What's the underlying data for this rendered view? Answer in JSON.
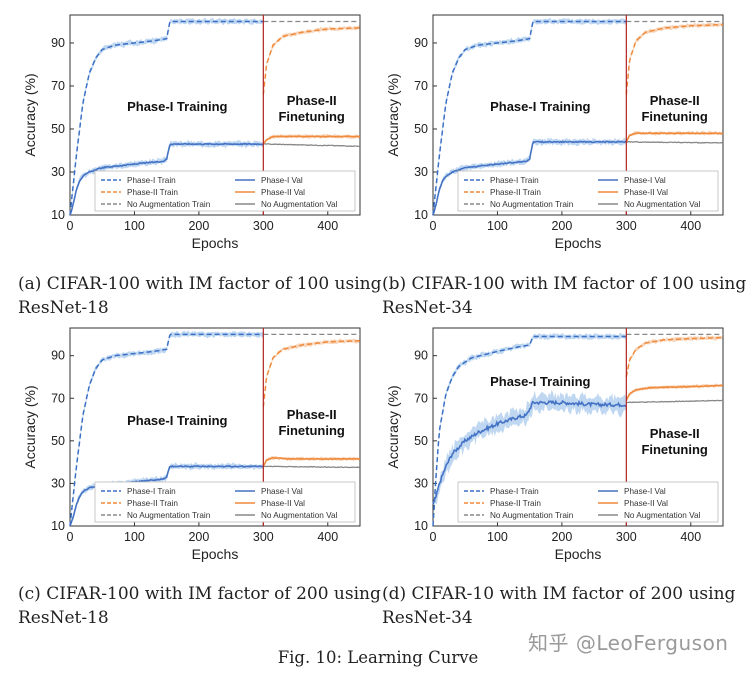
{
  "figure_caption": "Fig. 10: Learning Curve",
  "watermark": "知乎 @LeoFerguson",
  "colors": {
    "train_blue": "#3a6fc4",
    "val_blue": "#4472c4",
    "band_blue": "#a9c9ec",
    "phase2": "#ef8a3c",
    "band_orange": "#f6c6a0",
    "noaug": "#888888",
    "divider": "#b22222"
  },
  "chart_data": [
    {
      "type": "line",
      "caption": "(a) CIFAR-100 with IM factor of 100 using ResNet-18",
      "xlabel": "Epochs",
      "ylabel": "Accuracy (%)",
      "xlim": [
        0,
        450
      ],
      "ylim": [
        10,
        103
      ],
      "xticks": [
        "0",
        "100",
        "200",
        "300",
        "400"
      ],
      "yticks": [
        "10",
        "30",
        "50",
        "70",
        "90"
      ],
      "divider_x": 300,
      "phase1_label": "Phase-I Training",
      "phase2_label": [
        "Phase-II",
        "Finetuning"
      ],
      "label_pos": "high",
      "legend": [
        "Phase-I Train",
        "Phase-I Val",
        "Phase-II Train",
        "Phase-II Val",
        "No Augmentation Train",
        "No Augmentation Val"
      ],
      "series": {
        "phase1_train": [
          [
            0,
            10
          ],
          [
            10,
            38
          ],
          [
            20,
            62
          ],
          [
            30,
            76
          ],
          [
            40,
            83
          ],
          [
            50,
            87
          ],
          [
            70,
            89
          ],
          [
            100,
            90
          ],
          [
            130,
            91
          ],
          [
            150,
            92
          ],
          [
            155,
            100
          ],
          [
            300,
            100
          ]
        ],
        "phase1_val": [
          [
            0,
            10
          ],
          [
            5,
            15
          ],
          [
            10,
            22
          ],
          [
            15,
            26
          ],
          [
            20,
            28
          ],
          [
            30,
            30
          ],
          [
            50,
            32
          ],
          [
            80,
            33
          ],
          [
            110,
            34
          ],
          [
            145,
            35
          ],
          [
            150,
            36
          ],
          [
            155,
            43
          ],
          [
            300,
            43
          ]
        ],
        "phase2_train": [
          [
            300,
            66
          ],
          [
            305,
            80
          ],
          [
            315,
            89
          ],
          [
            330,
            93
          ],
          [
            360,
            95
          ],
          [
            400,
            96.5
          ],
          [
            450,
            97
          ]
        ],
        "phase2_val": [
          [
            300,
            43
          ],
          [
            305,
            45
          ],
          [
            315,
            46.5
          ],
          [
            340,
            46.5
          ],
          [
            450,
            46.5
          ]
        ],
        "noaug_train": [
          [
            300,
            100
          ],
          [
            450,
            100
          ]
        ],
        "noaug_val": [
          [
            300,
            43
          ],
          [
            450,
            42
          ]
        ]
      }
    },
    {
      "type": "line",
      "caption": "(b) CIFAR-100 with IM factor of 100 using ResNet-34",
      "xlabel": "Epochs",
      "ylabel": "Accuracy (%)",
      "xlim": [
        0,
        450
      ],
      "ylim": [
        10,
        103
      ],
      "xticks": [
        "0",
        "100",
        "200",
        "300",
        "400"
      ],
      "yticks": [
        "10",
        "30",
        "50",
        "70",
        "90"
      ],
      "divider_x": 300,
      "phase1_label": "Phase-I Training",
      "phase2_label": [
        "Phase-II",
        "Finetuning"
      ],
      "label_pos": "high",
      "legend": [
        "Phase-I Train",
        "Phase-I Val",
        "Phase-II Train",
        "Phase-II Val",
        "No Augmentation Train",
        "No Augmentation Val"
      ],
      "series": {
        "phase1_train": [
          [
            0,
            10
          ],
          [
            10,
            38
          ],
          [
            20,
            62
          ],
          [
            30,
            76
          ],
          [
            40,
            83
          ],
          [
            50,
            87
          ],
          [
            70,
            89
          ],
          [
            100,
            90
          ],
          [
            130,
            91
          ],
          [
            150,
            92
          ],
          [
            155,
            100
          ],
          [
            300,
            100
          ]
        ],
        "phase1_val": [
          [
            0,
            10
          ],
          [
            5,
            15
          ],
          [
            10,
            22
          ],
          [
            15,
            26
          ],
          [
            20,
            28
          ],
          [
            30,
            30
          ],
          [
            50,
            32
          ],
          [
            80,
            33
          ],
          [
            110,
            34
          ],
          [
            145,
            35
          ],
          [
            150,
            36
          ],
          [
            155,
            44
          ],
          [
            300,
            44
          ]
        ],
        "phase2_train": [
          [
            300,
            66
          ],
          [
            305,
            82
          ],
          [
            315,
            91
          ],
          [
            330,
            95
          ],
          [
            360,
            97
          ],
          [
            400,
            98
          ],
          [
            450,
            98.5
          ]
        ],
        "phase2_val": [
          [
            300,
            44
          ],
          [
            305,
            47
          ],
          [
            315,
            48
          ],
          [
            340,
            48
          ],
          [
            450,
            48
          ]
        ],
        "noaug_train": [
          [
            300,
            100
          ],
          [
            450,
            100
          ]
        ],
        "noaug_val": [
          [
            300,
            44
          ],
          [
            450,
            43.5
          ]
        ]
      }
    },
    {
      "type": "line",
      "caption": "(c) CIFAR-100 with IM factor of 200 using ResNet-18",
      "xlabel": "Epochs",
      "ylabel": "Accuracy (%)",
      "xlim": [
        0,
        450
      ],
      "ylim": [
        10,
        103
      ],
      "xticks": [
        "0",
        "100",
        "200",
        "300",
        "400"
      ],
      "yticks": [
        "10",
        "30",
        "50",
        "70",
        "90"
      ],
      "divider_x": 300,
      "phase1_label": "Phase-I Training",
      "phase2_label": [
        "Phase-II",
        "Finetuning"
      ],
      "label_pos": "mid",
      "legend": [
        "Phase-I Train",
        "Phase-I Val",
        "Phase-II Train",
        "Phase-II Val",
        "No Augmentation Train",
        "No Augmentation Val"
      ],
      "series": {
        "phase1_train": [
          [
            0,
            10
          ],
          [
            10,
            38
          ],
          [
            20,
            62
          ],
          [
            30,
            76
          ],
          [
            40,
            84
          ],
          [
            50,
            88
          ],
          [
            70,
            90
          ],
          [
            100,
            91
          ],
          [
            130,
            92
          ],
          [
            150,
            93
          ],
          [
            155,
            100
          ],
          [
            300,
            100
          ]
        ],
        "phase1_val": [
          [
            0,
            10
          ],
          [
            5,
            14
          ],
          [
            10,
            20
          ],
          [
            15,
            24
          ],
          [
            20,
            26
          ],
          [
            30,
            28
          ],
          [
            50,
            29
          ],
          [
            80,
            30
          ],
          [
            110,
            31
          ],
          [
            145,
            32
          ],
          [
            150,
            33
          ],
          [
            155,
            38
          ],
          [
            300,
            38
          ]
        ],
        "phase2_train": [
          [
            300,
            66
          ],
          [
            305,
            80
          ],
          [
            315,
            89
          ],
          [
            330,
            93
          ],
          [
            360,
            95
          ],
          [
            400,
            96.5
          ],
          [
            450,
            97
          ]
        ],
        "phase2_val": [
          [
            300,
            38
          ],
          [
            305,
            41
          ],
          [
            315,
            42
          ],
          [
            340,
            41.5
          ],
          [
            450,
            41.5
          ]
        ],
        "noaug_train": [
          [
            300,
            100
          ],
          [
            450,
            100
          ]
        ],
        "noaug_val": [
          [
            300,
            38
          ],
          [
            450,
            37.5
          ]
        ]
      }
    },
    {
      "type": "line",
      "caption": "(d) CIFAR-10 with IM factor of 200 using ResNet-34",
      "xlabel": "Epochs",
      "ylabel": "Accuracy (%)",
      "xlim": [
        0,
        450
      ],
      "ylim": [
        10,
        103
      ],
      "xticks": [
        "0",
        "100",
        "200",
        "300",
        "400"
      ],
      "yticks": [
        "10",
        "30",
        "50",
        "70",
        "90"
      ],
      "divider_x": 300,
      "phase1_label": "Phase-I Training",
      "phase2_label": [
        "Phase-II",
        "Finetuning"
      ],
      "label_pos": "d",
      "legend": [
        "Phase-I Train",
        "Phase-I Val",
        "Phase-II Train",
        "Phase-II Val",
        "No Augmentation Train",
        "No Augmentation Val"
      ],
      "series": {
        "phase1_train": [
          [
            0,
            10
          ],
          [
            5,
            35
          ],
          [
            10,
            55
          ],
          [
            20,
            72
          ],
          [
            30,
            80
          ],
          [
            40,
            85
          ],
          [
            60,
            89
          ],
          [
            100,
            92
          ],
          [
            130,
            94
          ],
          [
            150,
            95
          ],
          [
            155,
            99
          ],
          [
            300,
            99
          ]
        ],
        "phase1_val": [
          [
            0,
            20
          ],
          [
            5,
            24
          ],
          [
            10,
            30
          ],
          [
            20,
            38
          ],
          [
            30,
            44
          ],
          [
            50,
            50
          ],
          [
            70,
            54
          ],
          [
            100,
            58
          ],
          [
            130,
            61
          ],
          [
            145,
            62
          ],
          [
            155,
            68
          ],
          [
            200,
            68
          ],
          [
            250,
            67
          ],
          [
            300,
            67
          ]
        ],
        "phase2_train": [
          [
            300,
            80
          ],
          [
            305,
            88
          ],
          [
            315,
            93
          ],
          [
            330,
            96
          ],
          [
            360,
            97.5
          ],
          [
            400,
            98
          ],
          [
            450,
            98.5
          ]
        ],
        "phase2_val": [
          [
            300,
            69
          ],
          [
            305,
            72
          ],
          [
            315,
            74
          ],
          [
            340,
            75
          ],
          [
            400,
            75.5
          ],
          [
            450,
            76
          ]
        ],
        "noaug_train": [
          [
            300,
            100
          ],
          [
            450,
            100
          ]
        ],
        "noaug_val": [
          [
            300,
            68
          ],
          [
            450,
            69
          ]
        ]
      }
    }
  ]
}
